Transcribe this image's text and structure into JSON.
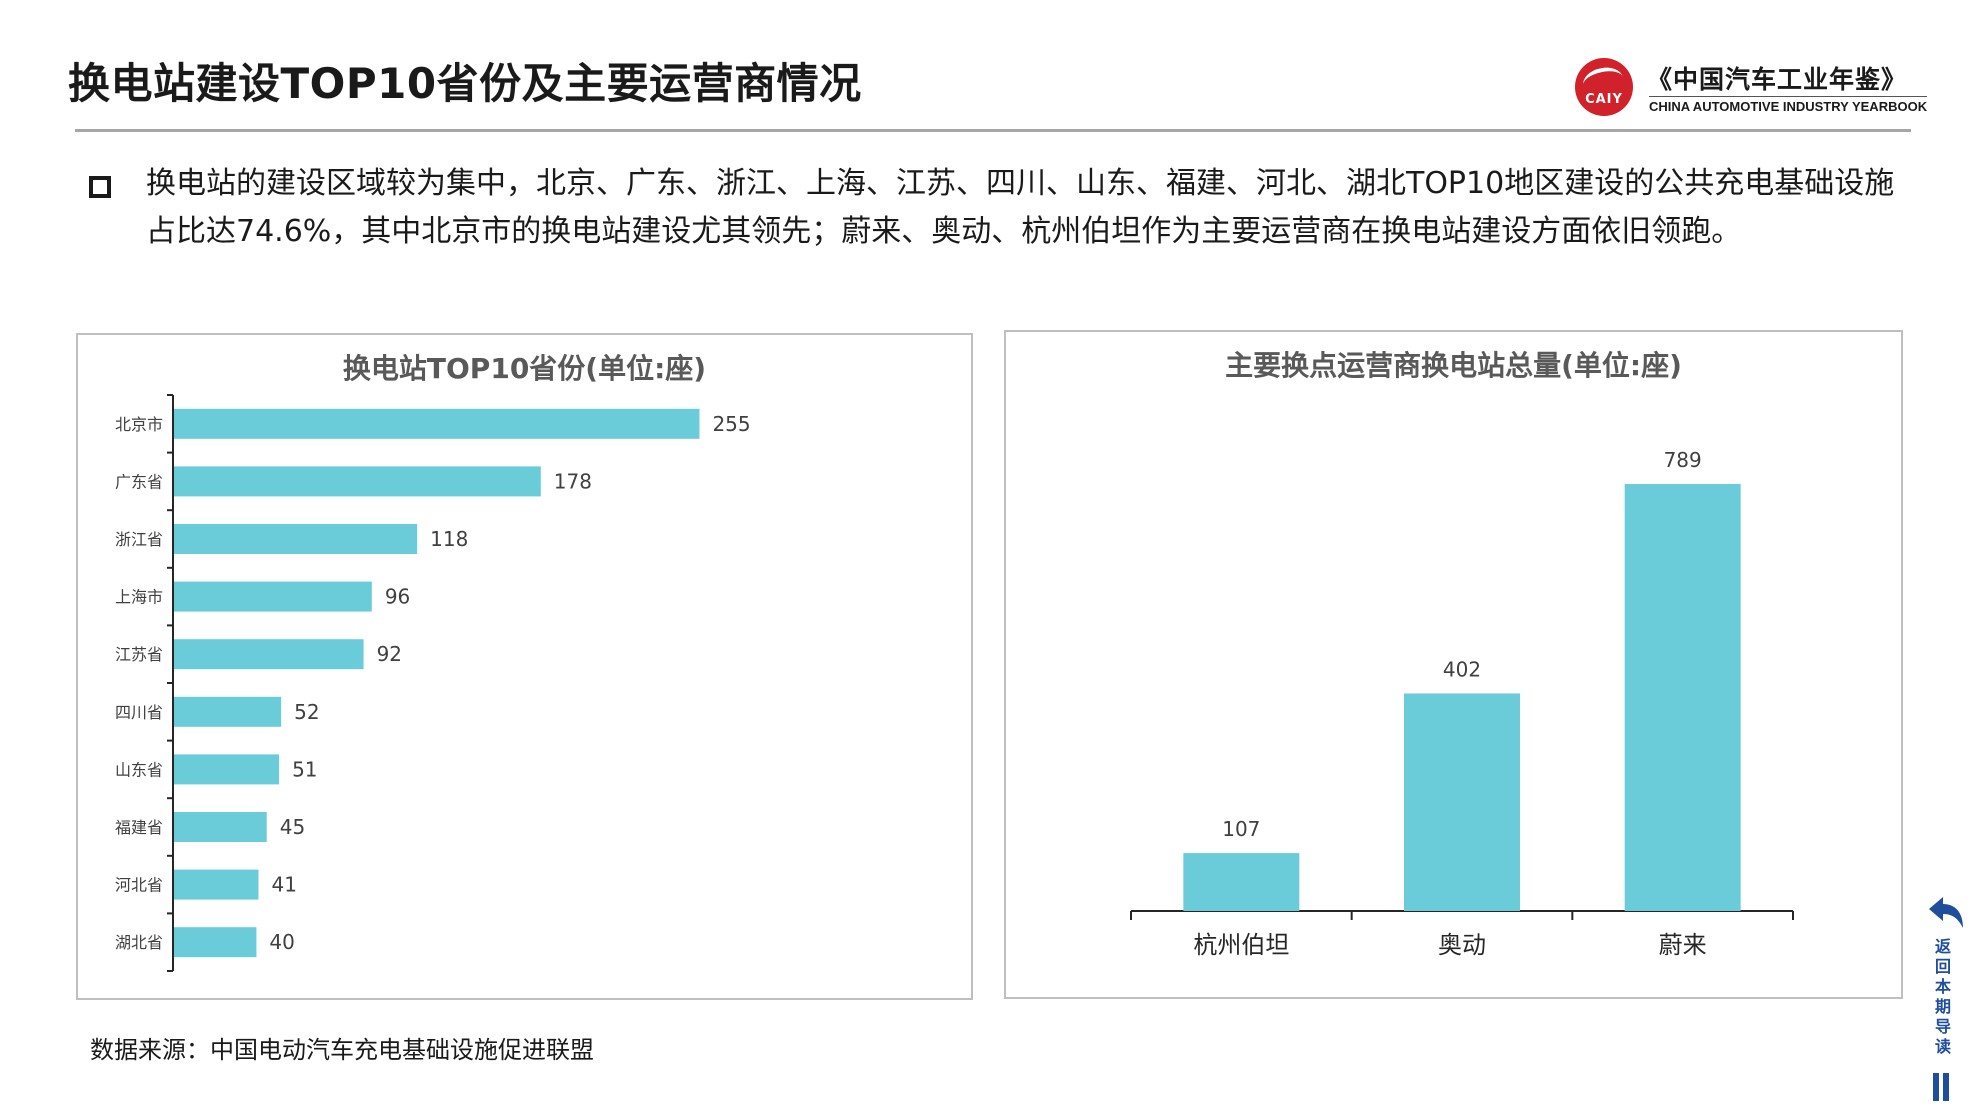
{
  "header": {
    "title": "换电站建设TOP10省份及主要运营商情况",
    "logo_badge": "CAIY",
    "logo_cn": "《中国汽车工业年鉴》",
    "logo_en": "CHINA AUTOMOTIVE INDUSTRY YEARBOOK"
  },
  "summary": "换电站的建设区域较为集中，北京、广东、浙江、上海、江苏、四川、山东、福建、河北、湖北TOP10地区建设的公共充电基础设施占比达74.6%，其中北京市的换电站建设尤其领先；蔚来、奥动、杭州伯坦作为主要运营商在换电站建设方面依旧领跑。",
  "source": "数据来源：中国电动汽车充电基础设施促进联盟",
  "nav": {
    "back_label": "返回本期导读"
  },
  "colors": {
    "bar": "#6bccd9",
    "brand_red": "#d1212a",
    "nav_blue": "#1f4e9b"
  },
  "chart_data": [
    {
      "type": "bar",
      "orientation": "horizontal",
      "title": "换电站TOP10省份(单位:座)",
      "categories": [
        "北京市",
        "广东省",
        "浙江省",
        "上海市",
        "江苏省",
        "四川省",
        "山东省",
        "福建省",
        "河北省",
        "湖北省"
      ],
      "values": [
        255,
        178,
        118,
        96,
        92,
        52,
        51,
        45,
        41,
        40
      ],
      "xlim": [
        0,
        330
      ],
      "grid": false,
      "data_labels": true
    },
    {
      "type": "bar",
      "orientation": "vertical",
      "title": "主要换点运营商换电站总量(单位:座)",
      "categories": [
        "杭州伯坦",
        "奥动",
        "蔚来"
      ],
      "values": [
        107,
        402,
        789
      ],
      "ylim": [
        0,
        850
      ],
      "grid": false,
      "data_labels": true
    }
  ]
}
